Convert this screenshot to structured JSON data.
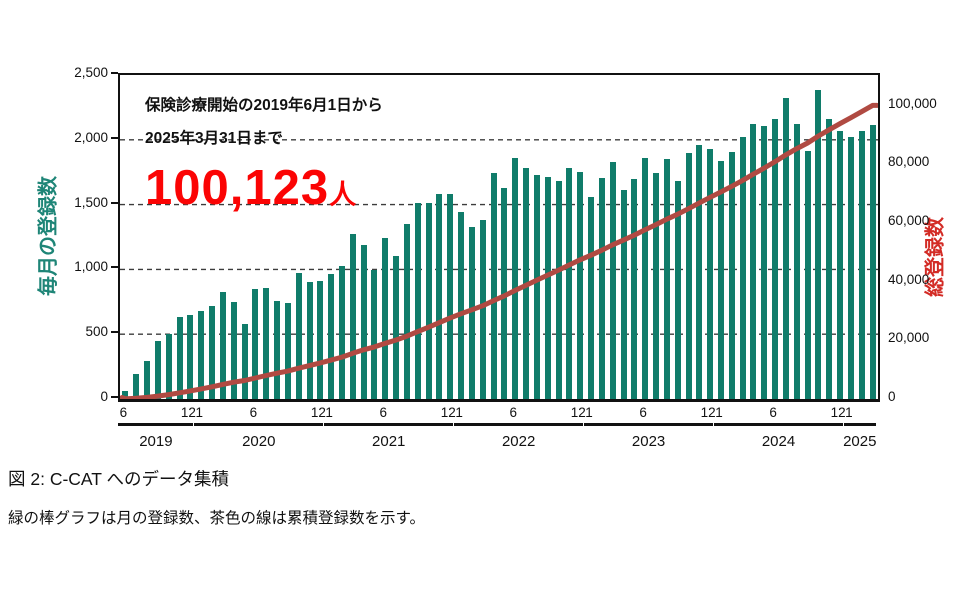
{
  "figure": {
    "caption": "図 2:  C-CAT へのデータ集積",
    "description": "緑の棒グラフは月の登録数、茶色の線は累積登録数を示す。"
  },
  "annotation": {
    "line1": "保険診療開始の2019年6月1日から",
    "line2": "2025年3月31日まで",
    "total": "100,123",
    "total_unit": "人"
  },
  "chart_data": {
    "type": "bar",
    "combo": "monthly bars (left axis) + cumulative line (right axis)",
    "categories": [
      "2019-06",
      "2019-07",
      "2019-08",
      "2019-09",
      "2019-10",
      "2019-11",
      "2019-12",
      "2020-01",
      "2020-02",
      "2020-03",
      "2020-04",
      "2020-05",
      "2020-06",
      "2020-07",
      "2020-08",
      "2020-09",
      "2020-10",
      "2020-11",
      "2020-12",
      "2021-01",
      "2021-02",
      "2021-03",
      "2021-04",
      "2021-05",
      "2021-06",
      "2021-07",
      "2021-08",
      "2021-09",
      "2021-10",
      "2021-11",
      "2021-12",
      "2022-01",
      "2022-02",
      "2022-03",
      "2022-04",
      "2022-05",
      "2022-06",
      "2022-07",
      "2022-08",
      "2022-09",
      "2022-10",
      "2022-11",
      "2022-12",
      "2023-01",
      "2023-02",
      "2023-03",
      "2023-04",
      "2023-05",
      "2023-06",
      "2023-07",
      "2023-08",
      "2023-09",
      "2023-10",
      "2023-11",
      "2023-12",
      "2024-01",
      "2024-02",
      "2024-03",
      "2024-04",
      "2024-05",
      "2024-06",
      "2024-07",
      "2024-08",
      "2024-09",
      "2024-10",
      "2024-11",
      "2024-12",
      "2025-01",
      "2025-02",
      "2025-03"
    ],
    "series": [
      {
        "name": "毎月の登録数",
        "type": "bar",
        "axis": "left",
        "color": "#107c6a",
        "values": [
          60,
          195,
          290,
          445,
          500,
          630,
          650,
          680,
          720,
          825,
          745,
          580,
          845,
          860,
          760,
          740,
          975,
          905,
          910,
          965,
          1025,
          1275,
          1190,
          995,
          1240,
          1105,
          1350,
          1515,
          1510,
          1580,
          1585,
          1440,
          1330,
          1385,
          1745,
          1630,
          1860,
          1780,
          1730,
          1715,
          1685,
          1780,
          1750,
          1560,
          1705,
          1830,
          1610,
          1700,
          1860,
          1740,
          1850,
          1680,
          1900,
          1960,
          1930,
          1835,
          1905,
          2020,
          2120,
          2110,
          2160,
          2320,
          2120,
          1910,
          2385,
          2160,
          2070,
          2018,
          2070,
          2115
        ]
      },
      {
        "name": "総登録数",
        "type": "line",
        "axis": "right",
        "color": "#b04a42",
        "derived": "cumulative_sum_of_series_0",
        "final_value": 100123
      }
    ],
    "left_axis": {
      "title": "毎月の登録数",
      "color": "#1e8577",
      "min": 0,
      "max": 2500,
      "tick_step": 500,
      "tick_labels": [
        "0",
        "500",
        "1,000",
        "1,500",
        "2,000",
        "2,500"
      ]
    },
    "right_axis": {
      "title": "総登録数",
      "color": "#d32b25",
      "min": 0,
      "tick_step": 20000,
      "top_value": 110500,
      "tick_labels": [
        "0",
        "20,000",
        "40,000",
        "60,000",
        "80,000",
        "100,000"
      ]
    },
    "x_axis": {
      "month_ticks": [
        {
          "label": "6",
          "index": 0
        },
        {
          "label": "12",
          "index": 6
        },
        {
          "label": "1",
          "index": 7
        },
        {
          "label": "6",
          "index": 12
        },
        {
          "label": "12",
          "index": 18
        },
        {
          "label": "1",
          "index": 19
        },
        {
          "label": "6",
          "index": 24
        },
        {
          "label": "12",
          "index": 30
        },
        {
          "label": "1",
          "index": 31
        },
        {
          "label": "6",
          "index": 36
        },
        {
          "label": "12",
          "index": 42
        },
        {
          "label": "1",
          "index": 43
        },
        {
          "label": "6",
          "index": 48
        },
        {
          "label": "12",
          "index": 54
        },
        {
          "label": "1",
          "index": 55
        },
        {
          "label": "6",
          "index": 60
        },
        {
          "label": "12",
          "index": 66
        },
        {
          "label": "1",
          "index": 67
        }
      ],
      "year_groups": [
        {
          "label": "2019",
          "from": 0,
          "to": 6
        },
        {
          "label": "2020",
          "from": 7,
          "to": 18
        },
        {
          "label": "2021",
          "from": 19,
          "to": 30
        },
        {
          "label": "2022",
          "from": 31,
          "to": 42
        },
        {
          "label": "2023",
          "from": 43,
          "to": 54
        },
        {
          "label": "2024",
          "from": 55,
          "to": 66
        },
        {
          "label": "2025",
          "from": 67,
          "to": 69
        }
      ]
    },
    "grid": {
      "horizontal_dashed_at": [
        500,
        1000,
        1500,
        2000
      ],
      "color": "#3c3c3c"
    },
    "legend": "none"
  }
}
